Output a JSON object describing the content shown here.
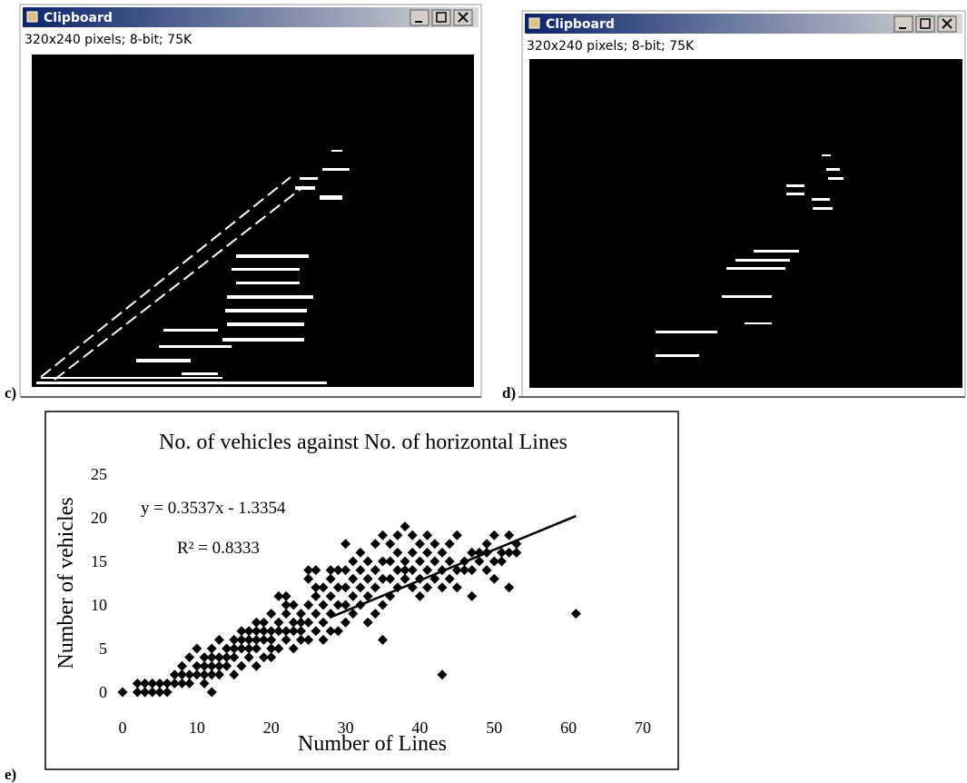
{
  "windows": [
    {
      "label": "c)",
      "title": "Clipboard",
      "status": "320x240 pixels; 8-bit; 75K"
    },
    {
      "label": "d)",
      "title": "Clipboard",
      "status": "320x240 pixels; 8-bit; 75K"
    }
  ],
  "figure_label": "e)",
  "chart_data": {
    "type": "scatter",
    "title": "No. of vehicles against No. of horizontal Lines",
    "xlabel": "Number of Lines",
    "ylabel": "Number of vehicles",
    "annotations": [
      "y = 0.3537x - 1.3354",
      "R² = 0.8333"
    ],
    "xlim": [
      0,
      70
    ],
    "xticks": [
      0,
      10,
      20,
      30,
      40,
      50,
      60,
      70
    ],
    "ylim": [
      0,
      25
    ],
    "yticks": [
      0,
      5,
      10,
      15,
      20,
      25
    ],
    "series": [
      {
        "color": "#000000",
        "x": [
          0,
          2,
          2,
          3,
          3,
          4,
          4,
          5,
          5,
          6,
          6,
          7,
          7,
          8,
          8,
          8,
          9,
          9,
          9,
          10,
          10,
          10,
          11,
          11,
          11,
          11,
          12,
          12,
          12,
          12,
          12,
          13,
          13,
          13,
          13,
          14,
          14,
          14,
          15,
          15,
          15,
          15,
          16,
          16,
          16,
          16,
          17,
          17,
          17,
          17,
          18,
          18,
          18,
          18,
          18,
          19,
          19,
          19,
          19,
          20,
          20,
          20,
          20,
          20,
          21,
          21,
          21,
          21,
          22,
          22,
          22,
          22,
          22,
          23,
          23,
          23,
          23,
          24,
          24,
          24,
          24,
          25,
          25,
          25,
          25,
          25,
          26,
          26,
          26,
          26,
          26,
          27,
          27,
          27,
          27,
          28,
          28,
          28,
          28,
          28,
          29,
          29,
          29,
          29,
          30,
          30,
          30,
          30,
          30,
          31,
          31,
          31,
          31,
          32,
          32,
          32,
          32,
          33,
          33,
          33,
          33,
          34,
          34,
          34,
          34,
          35,
          35,
          35,
          35,
          35,
          36,
          36,
          36,
          36,
          37,
          37,
          37,
          37,
          38,
          38,
          38,
          38,
          39,
          39,
          39,
          39,
          40,
          40,
          40,
          40,
          41,
          41,
          41,
          41,
          42,
          42,
          42,
          43,
          43,
          43,
          43,
          44,
          44,
          44,
          45,
          45,
          45,
          46,
          46,
          47,
          47,
          47,
          48,
          48,
          49,
          49,
          49,
          50,
          50,
          50,
          51,
          51,
          52,
          52,
          52,
          53,
          53,
          61
        ],
        "values": [
          0,
          0,
          1,
          0,
          1,
          0,
          1,
          0,
          1,
          0,
          1,
          1,
          2,
          1,
          2,
          3,
          1,
          2,
          4,
          2,
          3,
          5,
          1,
          2,
          3,
          4,
          0,
          2,
          3,
          4,
          5,
          2,
          3,
          4,
          6,
          3,
          4,
          5,
          2,
          4,
          5,
          6,
          3,
          5,
          6,
          7,
          4,
          5,
          6,
          7,
          3,
          5,
          6,
          7,
          8,
          4,
          6,
          7,
          8,
          4,
          5,
          6,
          7,
          9,
          5,
          7,
          8,
          11,
          6,
          7,
          9,
          10,
          11,
          5,
          7,
          8,
          10,
          6,
          7,
          8,
          9,
          6,
          8,
          10,
          13,
          14,
          7,
          9,
          11,
          12,
          14,
          6,
          8,
          10,
          12,
          7,
          9,
          11,
          13,
          14,
          7,
          10,
          12,
          14,
          8,
          10,
          12,
          14,
          17,
          9,
          11,
          13,
          15,
          10,
          12,
          14,
          16,
          8,
          11,
          13,
          15,
          9,
          12,
          14,
          17,
          6,
          10,
          13,
          15,
          18,
          11,
          13,
          15,
          17,
          12,
          14,
          16,
          18,
          13,
          14,
          15,
          19,
          12,
          14,
          16,
          18,
          11,
          13,
          15,
          17,
          12,
          14,
          16,
          18,
          13,
          15,
          17,
          2,
          12,
          14,
          16,
          13,
          15,
          17,
          12,
          14,
          18,
          14,
          15,
          11,
          14,
          16,
          15,
          16,
          14,
          16,
          17,
          13,
          15,
          18,
          15,
          16,
          12,
          16,
          18,
          16,
          17,
          9
        ]
      }
    ],
    "trendline": {
      "x": [
        28,
        61
      ],
      "values": [
        8.6,
        20.2
      ]
    }
  }
}
